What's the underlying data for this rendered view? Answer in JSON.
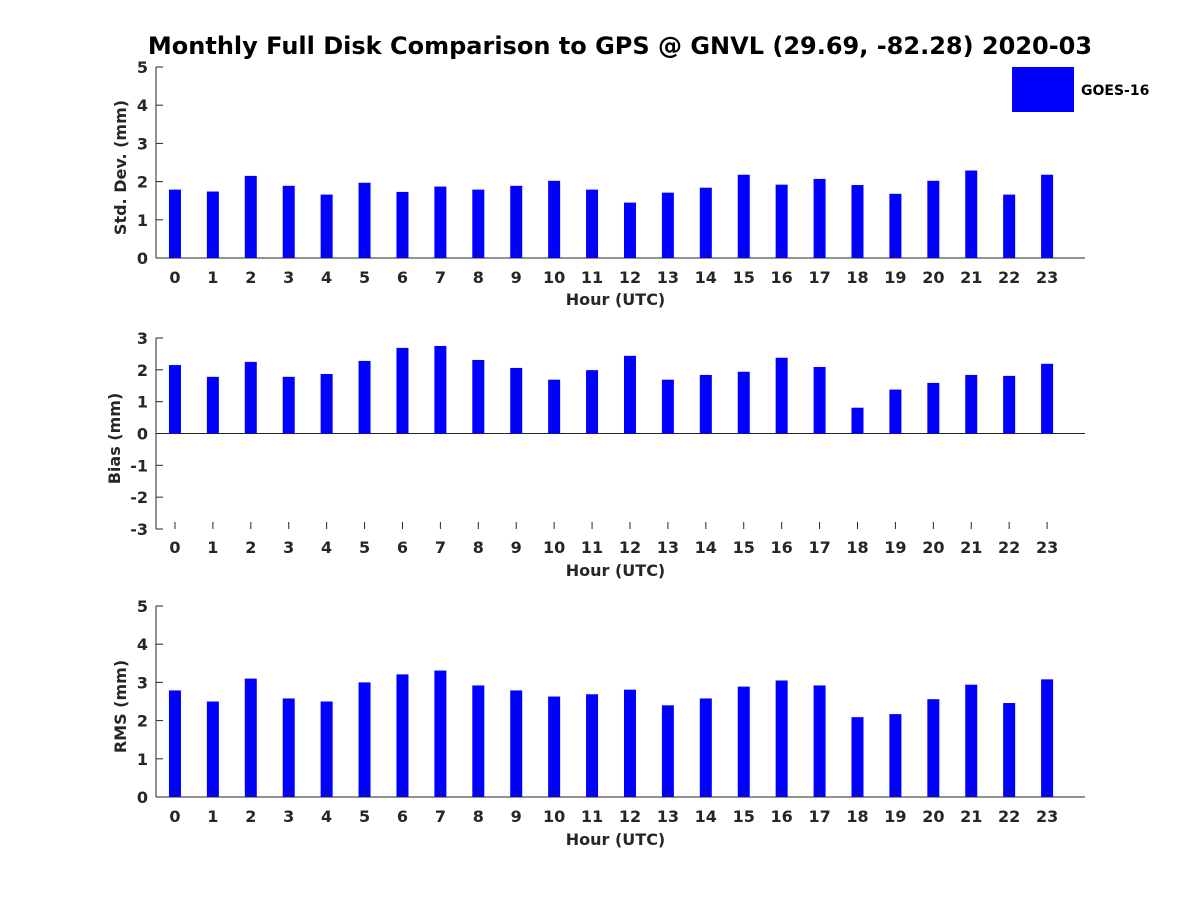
{
  "title": "Monthly Full Disk Comparison to GPS @ GNVL (29.69, -82.28) 2020-03",
  "colors": {
    "bar": "#0000ff",
    "axis": "#262626"
  },
  "legend": {
    "label": "GOES-16",
    "placement": "top-right"
  },
  "chart_data": [
    {
      "type": "bar",
      "xlabel": "Hour (UTC)",
      "ylabel": "Std. Dev. (mm)",
      "ylim": [
        0,
        5
      ],
      "yticks": [
        "0",
        "1",
        "2",
        "3",
        "4",
        "5"
      ],
      "categories": [
        "0",
        "1",
        "2",
        "3",
        "4",
        "5",
        "6",
        "7",
        "8",
        "9",
        "10",
        "11",
        "12",
        "13",
        "14",
        "15",
        "16",
        "17",
        "18",
        "19",
        "20",
        "21",
        "22",
        "23"
      ],
      "series": [
        {
          "name": "GOES-16",
          "values": [
            1.79,
            1.74,
            2.15,
            1.89,
            1.66,
            1.97,
            1.73,
            1.87,
            1.79,
            1.89,
            2.02,
            1.79,
            1.45,
            1.71,
            1.84,
            2.18,
            1.92,
            2.07,
            1.91,
            1.68,
            2.02,
            2.29,
            1.66,
            2.18
          ]
        }
      ],
      "grid": false,
      "legend": true
    },
    {
      "type": "bar",
      "xlabel": "Hour (UTC)",
      "ylabel": "Bias (mm)",
      "ylim": [
        -3,
        3
      ],
      "yticks": [
        "-3",
        "-2",
        "-1",
        "0",
        "1",
        "2",
        "3"
      ],
      "categories": [
        "0",
        "1",
        "2",
        "3",
        "4",
        "5",
        "6",
        "7",
        "8",
        "9",
        "10",
        "11",
        "12",
        "13",
        "14",
        "15",
        "16",
        "17",
        "18",
        "19",
        "20",
        "21",
        "22",
        "23"
      ],
      "series": [
        {
          "name": "GOES-16",
          "values": [
            2.15,
            1.78,
            2.25,
            1.78,
            1.87,
            2.28,
            2.69,
            2.75,
            2.31,
            2.06,
            1.69,
            1.99,
            2.44,
            1.69,
            1.84,
            1.94,
            2.38,
            2.09,
            0.81,
            1.38,
            1.59,
            1.84,
            1.81,
            2.19
          ]
        }
      ],
      "grid": false,
      "legend": false
    },
    {
      "type": "bar",
      "xlabel": "Hour (UTC)",
      "ylabel": "RMS (mm)",
      "ylim": [
        0,
        5
      ],
      "yticks": [
        "0",
        "1",
        "2",
        "3",
        "4",
        "5"
      ],
      "categories": [
        "0",
        "1",
        "2",
        "3",
        "4",
        "5",
        "6",
        "7",
        "8",
        "9",
        "10",
        "11",
        "12",
        "13",
        "14",
        "15",
        "16",
        "17",
        "18",
        "19",
        "20",
        "21",
        "22",
        "23"
      ],
      "series": [
        {
          "name": "GOES-16",
          "values": [
            2.79,
            2.5,
            3.1,
            2.58,
            2.5,
            3.0,
            3.21,
            3.31,
            2.92,
            2.79,
            2.63,
            2.69,
            2.81,
            2.4,
            2.58,
            2.89,
            3.05,
            2.92,
            2.09,
            2.17,
            2.56,
            2.94,
            2.46,
            3.08
          ]
        }
      ],
      "grid": false,
      "legend": false
    }
  ]
}
